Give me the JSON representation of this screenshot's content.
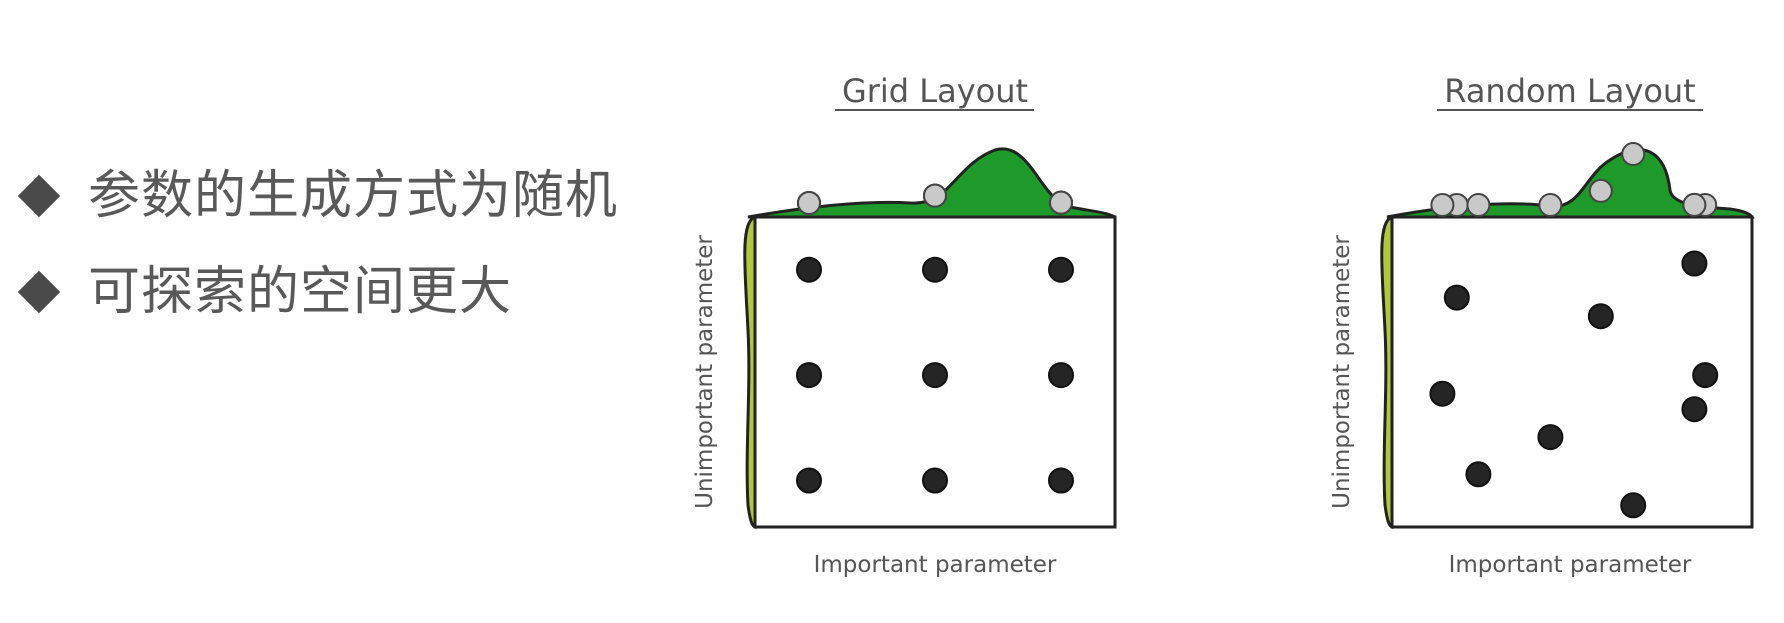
{
  "bullets": [
    {
      "icon": "diamond-bullet-icon",
      "text": "参数的生成方式为随机"
    },
    {
      "icon": "diamond-bullet-icon",
      "text": "可探索的空间更大"
    }
  ],
  "panels": [
    {
      "title": "Grid Layout",
      "ylabel": "Unimportant parameter",
      "xlabel": "Important parameter",
      "points": [
        [
          0.15,
          0.83
        ],
        [
          0.5,
          0.83
        ],
        [
          0.85,
          0.83
        ],
        [
          0.15,
          0.49
        ],
        [
          0.5,
          0.49
        ],
        [
          0.85,
          0.49
        ],
        [
          0.15,
          0.15
        ],
        [
          0.5,
          0.15
        ],
        [
          0.85,
          0.15
        ]
      ]
    },
    {
      "title": "Random Layout",
      "ylabel": "Unimportant parameter",
      "xlabel": "Important parameter",
      "points": [
        [
          0.84,
          0.85
        ],
        [
          0.18,
          0.74
        ],
        [
          0.58,
          0.68
        ],
        [
          0.87,
          0.49
        ],
        [
          0.14,
          0.43
        ],
        [
          0.84,
          0.38
        ],
        [
          0.44,
          0.29
        ],
        [
          0.24,
          0.17
        ],
        [
          0.67,
          0.07
        ]
      ]
    }
  ],
  "colors": {
    "important_curve": "#1e9a2a",
    "unimportant_curve": "#b2c83c",
    "point": "#252525",
    "projection_point_fill": "#c9c9c9",
    "text": "#595959"
  }
}
